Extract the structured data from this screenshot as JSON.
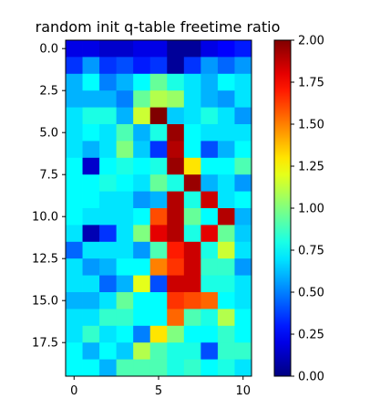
{
  "chart_data": {
    "type": "heatmap",
    "title": "random init q-table freetime ratio",
    "xlabel": "",
    "ylabel": "",
    "colormap": "jet",
    "vmin": 0.0,
    "vmax": 2.0,
    "x_ticks": [
      0,
      5,
      10
    ],
    "x_tick_labels": [
      "0",
      "5",
      "10"
    ],
    "y_ticks": [
      0.0,
      2.5,
      5.0,
      7.5,
      10.0,
      12.5,
      15.0,
      17.5
    ],
    "y_tick_labels": [
      "0.0",
      "2.5",
      "5.0",
      "7.5",
      "10.0",
      "12.5",
      "15.0",
      "17.5"
    ],
    "colorbar_ticks": [
      0.0,
      0.25,
      0.5,
      0.75,
      1.0,
      1.25,
      1.5,
      1.75,
      2.0
    ],
    "colorbar_tick_labels": [
      "0.00",
      "0.25",
      "0.50",
      "0.75",
      "1.00",
      "1.25",
      "1.50",
      "1.75",
      "2.00"
    ],
    "n_cols": 11,
    "n_rows": 20,
    "values": [
      [
        0.2,
        0.2,
        0.15,
        0.15,
        0.2,
        0.2,
        0.05,
        0.05,
        0.2,
        0.25,
        0.3
      ],
      [
        0.35,
        0.55,
        0.35,
        0.4,
        0.3,
        0.35,
        0.05,
        0.35,
        0.55,
        0.45,
        0.55
      ],
      [
        0.6,
        0.75,
        0.5,
        0.6,
        0.75,
        0.95,
        0.8,
        0.7,
        0.6,
        0.75,
        0.7
      ],
      [
        0.6,
        0.6,
        0.6,
        0.5,
        0.95,
        1.1,
        1.05,
        0.7,
        0.6,
        0.55,
        0.7
      ],
      [
        0.7,
        0.8,
        0.8,
        0.6,
        1.15,
        2.0,
        0.65,
        0.7,
        0.8,
        0.7,
        0.55
      ],
      [
        0.7,
        0.75,
        0.7,
        0.9,
        0.6,
        0.8,
        1.95,
        0.75,
        0.7,
        0.7,
        0.7
      ],
      [
        0.7,
        0.6,
        0.7,
        1.0,
        0.65,
        0.35,
        1.9,
        0.75,
        0.4,
        0.6,
        0.75
      ],
      [
        0.75,
        0.15,
        0.75,
        0.8,
        0.75,
        0.8,
        1.95,
        1.3,
        0.75,
        0.75,
        0.9
      ],
      [
        0.75,
        0.75,
        0.8,
        0.75,
        0.7,
        0.95,
        0.8,
        1.95,
        0.6,
        0.7,
        0.55
      ],
      [
        0.75,
        0.75,
        0.7,
        0.7,
        0.55,
        0.6,
        1.9,
        0.8,
        1.85,
        0.7,
        0.75
      ],
      [
        0.75,
        0.7,
        0.7,
        0.7,
        0.75,
        1.6,
        1.9,
        0.95,
        0.75,
        1.9,
        0.6
      ],
      [
        0.7,
        0.1,
        0.35,
        0.7,
        1.0,
        1.8,
        1.9,
        0.8,
        1.8,
        0.95,
        0.65
      ],
      [
        0.45,
        0.7,
        0.7,
        0.7,
        0.55,
        0.9,
        1.7,
        1.85,
        0.8,
        1.15,
        0.7
      ],
      [
        0.7,
        0.55,
        0.6,
        0.75,
        0.75,
        1.5,
        1.65,
        1.85,
        0.85,
        0.85,
        0.55
      ],
      [
        0.7,
        0.7,
        0.45,
        0.6,
        1.2,
        0.4,
        1.85,
        1.85,
        0.8,
        0.8,
        0.7
      ],
      [
        0.6,
        0.6,
        0.7,
        0.95,
        0.75,
        0.75,
        1.65,
        1.6,
        1.55,
        0.75,
        0.7
      ],
      [
        0.7,
        0.7,
        0.85,
        0.85,
        0.75,
        0.75,
        1.55,
        0.9,
        0.8,
        1.1,
        0.75
      ],
      [
        0.7,
        0.85,
        0.7,
        0.75,
        0.5,
        1.3,
        1.0,
        0.75,
        0.75,
        0.85,
        0.75
      ],
      [
        0.75,
        0.6,
        0.75,
        0.65,
        1.1,
        0.9,
        0.8,
        0.8,
        0.4,
        0.85,
        0.85
      ],
      [
        0.75,
        0.75,
        0.6,
        0.9,
        0.9,
        0.9,
        0.8,
        0.85,
        0.75,
        0.8,
        0.7
      ]
    ]
  }
}
